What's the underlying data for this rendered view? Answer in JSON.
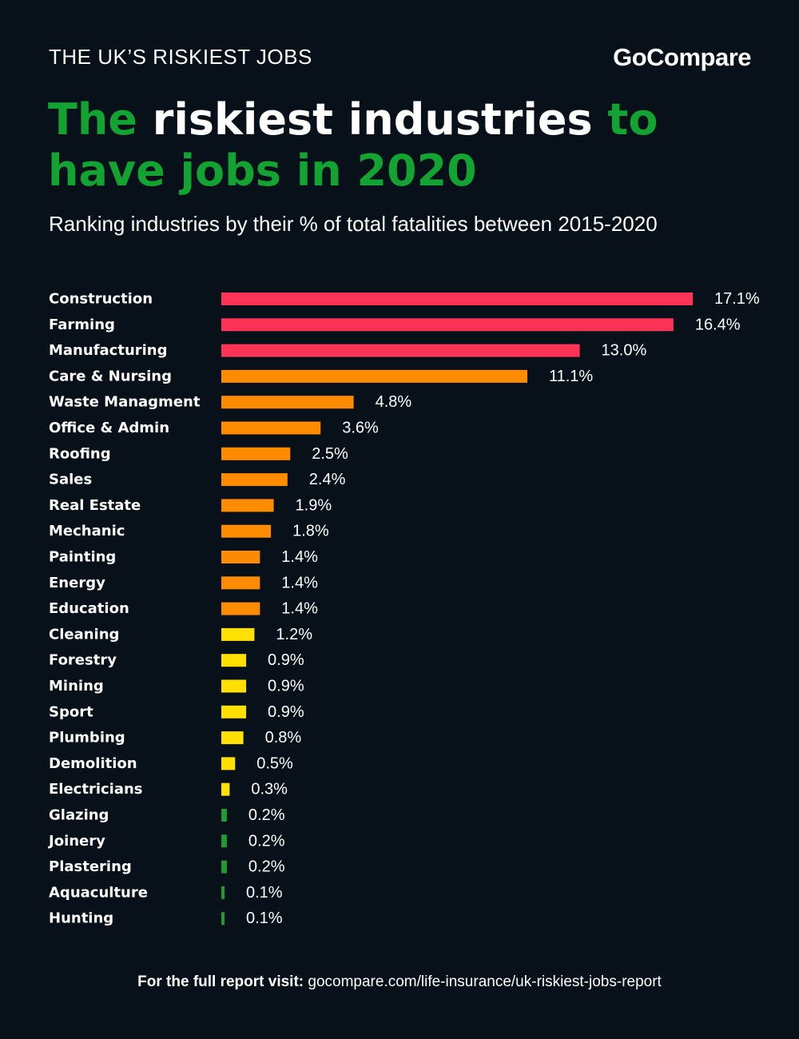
{
  "header": {
    "eyebrow": "THE UK’S RISKIEST JOBS",
    "brand": "GoCompare",
    "title_parts": [
      "The ",
      "riskiest industries",
      " to",
      "have jobs in 2020"
    ],
    "subtitle": "Ranking industries by their % of total fatalities between 2015-2020"
  },
  "colors": {
    "background": "#08111a",
    "green": "#12a332",
    "red": "#ff3355",
    "orange": "#ff8c00",
    "yellow": "#ffe000",
    "dark_green": "#1f9b33"
  },
  "chart_data": {
    "type": "bar",
    "orientation": "horizontal",
    "categories": [
      "Construction",
      "Farming",
      "Manufacturing",
      "Care & Nursing",
      "Waste Managment",
      "Office & Admin",
      "Roofing",
      "Sales",
      "Real Estate",
      "Mechanic",
      "Painting",
      "Energy",
      "Education",
      "Cleaning",
      "Forestry",
      "Mining",
      "Sport",
      "Plumbing",
      "Demolition",
      "Electricians",
      "Glazing",
      "Joinery",
      "Plastering",
      "Aquaculture",
      "Hunting"
    ],
    "values": [
      17.1,
      16.4,
      13.0,
      11.1,
      4.8,
      3.6,
      2.5,
      2.4,
      1.9,
      1.8,
      1.4,
      1.4,
      1.4,
      1.2,
      0.9,
      0.9,
      0.9,
      0.8,
      0.5,
      0.3,
      0.2,
      0.2,
      0.2,
      0.1,
      0.1
    ],
    "value_labels": [
      "17.1%",
      "16.4%",
      "13.0%",
      "11.1%",
      "4.8%",
      "3.6%",
      "2.5%",
      "2.4%",
      "1.9%",
      "1.8%",
      "1.4%",
      "1.4%",
      "1.4%",
      "1.2%",
      "0.9%",
      "0.9%",
      "0.9%",
      "0.8%",
      "0.5%",
      "0.3%",
      "0.2%",
      "0.2%",
      "0.2%",
      "0.1%",
      "0.1%"
    ],
    "bar_colors": [
      "#ff3355",
      "#ff3355",
      "#ff3355",
      "#ff8c00",
      "#ff8c00",
      "#ff8c00",
      "#ff8c00",
      "#ff8c00",
      "#ff8c00",
      "#ff8c00",
      "#ff8c00",
      "#ff8c00",
      "#ff8c00",
      "#ffe000",
      "#ffe000",
      "#ffe000",
      "#ffe000",
      "#ffe000",
      "#ffe000",
      "#ffe000",
      "#1f9b33",
      "#1f9b33",
      "#1f9b33",
      "#1f9b33",
      "#1f9b33"
    ],
    "xlim": [
      0,
      17.1
    ],
    "unit": "%",
    "grid": false,
    "legend": "none"
  },
  "footer": {
    "lead": "For the full report visit:",
    "url": "gocompare.com/life-insurance/uk-riskiest-jobs-report"
  }
}
